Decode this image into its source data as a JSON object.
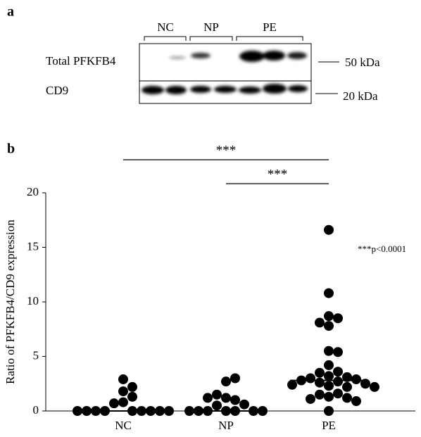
{
  "blot": {
    "panel_label": "a",
    "groups": [
      "NC",
      "NP",
      "PE"
    ],
    "rows": [
      {
        "label": "Total PFKFB4",
        "size": "50 kDa"
      },
      {
        "label": "CD9",
        "size": "20 kDa"
      }
    ]
  },
  "chart_data": {
    "type": "strip",
    "panel_label": "b",
    "y_label": "Ratio of PFKFB4/CD9 expression",
    "categories": [
      "NC",
      "NP",
      "PE"
    ],
    "values": [
      [
        0.8,
        1.8,
        2.9,
        1.3,
        2.2,
        0.7,
        0,
        0,
        0,
        0,
        0,
        0,
        0,
        0,
        0
      ],
      [
        1.2,
        1.0,
        0.5,
        2.7,
        3.0,
        1.5,
        0.6,
        1.2,
        0,
        0,
        0,
        0,
        0,
        0,
        0
      ],
      [
        16.6,
        10.8,
        8.7,
        8.5,
        8.1,
        7.8,
        5.5,
        5.4,
        4.2,
        3.6,
        3.5,
        3.2,
        3.1,
        3.0,
        2.9,
        2.8,
        2.7,
        2.6,
        2.5,
        2.4,
        2.3,
        2.2,
        2.2,
        1.6,
        1.5,
        1.3,
        1.2,
        1.1,
        0.9,
        0
      ]
    ],
    "medians": [
      0,
      0,
      2.8
    ],
    "color": "#000000",
    "ylim": [
      0,
      20
    ],
    "yticks": [
      0,
      5,
      10,
      15,
      20
    ],
    "grid": false,
    "comparisons": [
      {
        "label": "***",
        "groups": [
          "NC",
          "PE"
        ]
      },
      {
        "label": "***",
        "groups": [
          "NP",
          "PE"
        ]
      }
    ],
    "note": "***p<0.0001"
  }
}
